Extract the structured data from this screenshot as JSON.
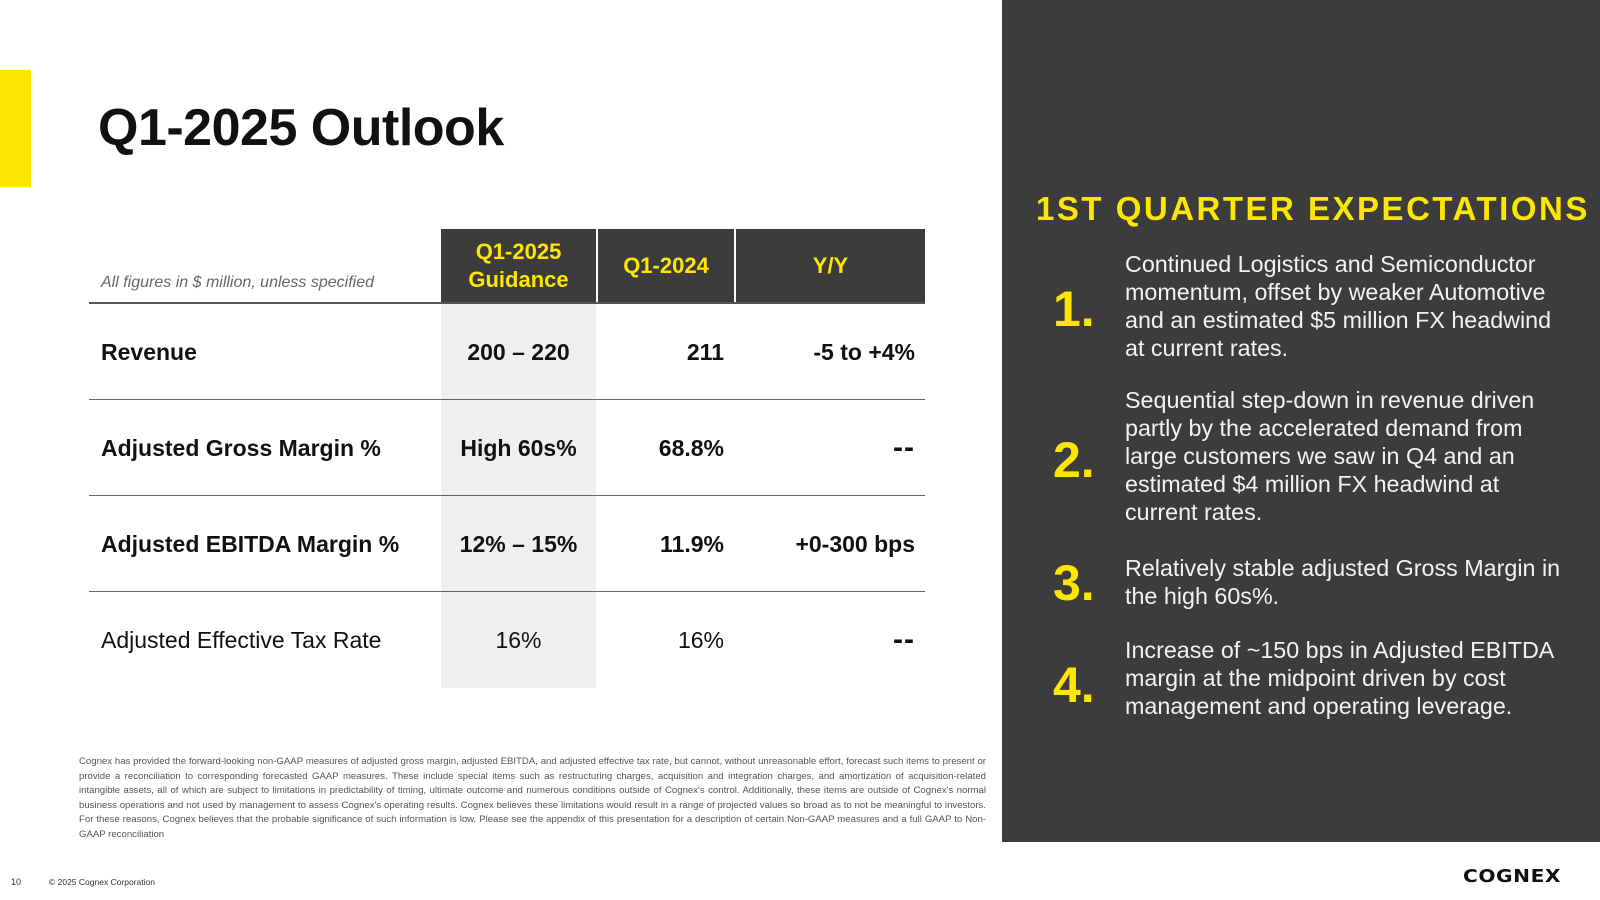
{
  "page": {
    "title": "Q1-2025 Outlook",
    "page_number": "10",
    "copyright": "© 2025 Cognex Corporation",
    "logo_text": "COGNEX"
  },
  "colors": {
    "accent": "#ffe600",
    "panel": "#3c3c3c",
    "guidance_shade": "#efefef"
  },
  "table": {
    "units_note": "All figures in $ million, unless specified",
    "headers": {
      "guidance": "Q1-2025 Guidance",
      "prior": "Q1-2024",
      "yoy": "Y/Y"
    },
    "rows": [
      {
        "label": "Revenue",
        "guidance": "200 – 220",
        "prior": "211",
        "yoy": "-5 to +4%"
      },
      {
        "label": "Adjusted Gross Margin %",
        "guidance": "High 60s%",
        "prior": "68.8%",
        "yoy": "--"
      },
      {
        "label": "Adjusted EBITDA Margin %",
        "guidance": "12% – 15%",
        "prior": "11.9%",
        "yoy": "+0-300 bps"
      },
      {
        "label": "Adjusted Effective Tax Rate",
        "guidance": "16%",
        "prior": "16%",
        "yoy": "--"
      }
    ]
  },
  "footnote": "Cognex has provided the forward-looking non-GAAP measures of adjusted gross margin, adjusted EBITDA, and adjusted effective tax rate, but cannot, without unreasonable effort, forecast such items to present or provide a reconciliation to corresponding forecasted GAAP measures. These include special items such as restructuring charges, acquisition and integration charges, and amortization of acquisition-related intangible assets, all of which are subject to limitations in predictability of timing, ultimate outcome and numerous conditions outside of Cognex's control. Additionally, these items are outside of Cognex's normal business operations and not used by management to assess Cognex's operating results. Cognex believes these limitations would result in a range of projected values so broad as to not be meaningful to investors. For these reasons, Cognex believes that the probable significance of such information is low. Please see the appendix of this presentation for a description of certain Non-GAAP measures and a full GAAP to Non-GAAP reconciliation",
  "expectations": {
    "title": "1ST QUARTER EXPECTATIONS",
    "items": [
      {
        "num": "1.",
        "text": "Continued Logistics and Semiconductor momentum, offset by weaker Automotive and an estimated $5 million FX headwind at current rates."
      },
      {
        "num": "2.",
        "text": "Sequential step-down in revenue driven partly by the accelerated demand from large customers we saw in Q4 and an estimated $4 million FX headwind at current rates."
      },
      {
        "num": "3.",
        "text": "Relatively stable adjusted Gross Margin in the high 60s%."
      },
      {
        "num": "4.",
        "text": "Increase of ~150 bps in Adjusted EBITDA margin at the midpoint driven by cost management and operating leverage."
      }
    ]
  }
}
